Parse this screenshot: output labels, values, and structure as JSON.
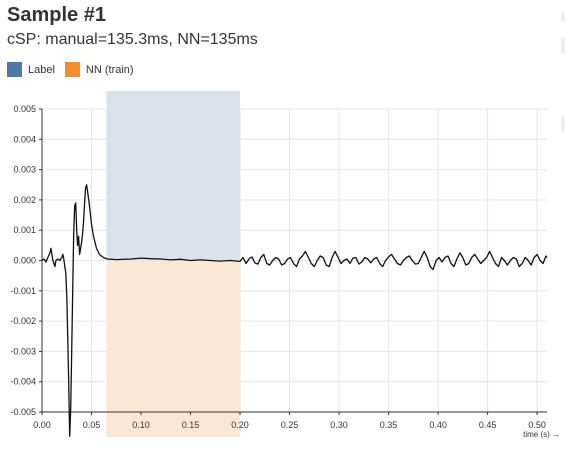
{
  "title": "Sample #1",
  "subtitle": "cSP: manual=135.3ms, NN=135ms",
  "colors": {
    "label": "#4e79a7",
    "nn": "#f28e2b",
    "label_shade": "#dae2ec",
    "nn_shade": "#fbe7d5",
    "trace": "#111111",
    "grid": "#e6e6e6"
  },
  "legend": [
    {
      "label": "Label",
      "color": "#4e79a7"
    },
    {
      "label": "NN (train)",
      "color": "#f28e2b"
    }
  ],
  "chart_data": {
    "type": "line",
    "title": "",
    "xlabel": "time (s) →",
    "ylabel": "",
    "xlim": [
      0.0,
      0.51
    ],
    "ylim": [
      -0.005,
      0.005
    ],
    "grid": true,
    "x_ticks": [
      "0.00",
      "0.05",
      "0.10",
      "0.15",
      "0.20",
      "0.25",
      "0.30",
      "0.35",
      "0.40",
      "0.45",
      "0.50"
    ],
    "y_ticks": [
      "0.005",
      "0.004",
      "0.003",
      "0.002",
      "0.001",
      "0.000",
      "-0.001",
      "-0.002",
      "-0.003",
      "-0.004",
      "-0.005"
    ],
    "regions": [
      {
        "series": "Label",
        "x_start": 0.065,
        "x_end": 0.2,
        "y_range": "positive"
      },
      {
        "series": "NN (train)",
        "x_start": 0.065,
        "x_end": 0.2,
        "y_range": "negative"
      }
    ],
    "series": [
      {
        "values": [
          [
            0.0,
            0.0
          ],
          [
            0.002,
            5e-05
          ],
          [
            0.004,
            -5e-05
          ],
          [
            0.006,
            0.0001
          ],
          [
            0.008,
            0.00025
          ],
          [
            0.009,
            0.0004
          ],
          [
            0.01,
            0.0002
          ],
          [
            0.011,
            0.0
          ],
          [
            0.012,
            -0.0001
          ],
          [
            0.013,
            -0.0002
          ],
          [
            0.014,
            0.0
          ],
          [
            0.016,
            5e-05
          ],
          [
            0.018,
            0.0
          ],
          [
            0.02,
            0.0001
          ],
          [
            0.021,
            0.0002
          ],
          [
            0.022,
            5e-05
          ],
          [
            0.023,
            -0.0002
          ],
          [
            0.024,
            -0.0004
          ],
          [
            0.025,
            -0.0012
          ],
          [
            0.026,
            -0.0025
          ],
          [
            0.027,
            -0.004
          ],
          [
            0.0275,
            -0.005
          ],
          [
            0.028,
            -0.0058
          ],
          [
            0.029,
            -0.0049
          ],
          [
            0.03,
            -0.003
          ],
          [
            0.031,
            -0.001
          ],
          [
            0.032,
            0.0009
          ],
          [
            0.033,
            0.0018
          ],
          [
            0.034,
            0.0019
          ],
          [
            0.035,
            0.001
          ],
          [
            0.036,
            0.0005
          ],
          [
            0.037,
            0.0008
          ],
          [
            0.038,
            0.0002
          ],
          [
            0.039,
            0.0004
          ],
          [
            0.04,
            0.0006
          ],
          [
            0.041,
            0.0009
          ],
          [
            0.042,
            0.0013
          ],
          [
            0.043,
            0.0019
          ],
          [
            0.044,
            0.0024
          ],
          [
            0.045,
            0.0025
          ],
          [
            0.046,
            0.0023
          ],
          [
            0.048,
            0.0018
          ],
          [
            0.05,
            0.0012
          ],
          [
            0.052,
            0.0008
          ],
          [
            0.055,
            0.0004
          ],
          [
            0.058,
            0.0002
          ],
          [
            0.062,
            0.0001
          ],
          [
            0.066,
            5e-05
          ],
          [
            0.075,
            3e-05
          ],
          [
            0.09,
            5e-05
          ],
          [
            0.1,
            8e-05
          ],
          [
            0.11,
            6e-05
          ],
          [
            0.12,
            5e-05
          ],
          [
            0.13,
            2e-05
          ],
          [
            0.14,
            4e-05
          ],
          [
            0.15,
            0.0
          ],
          [
            0.16,
            2e-05
          ],
          [
            0.17,
            0.0
          ],
          [
            0.18,
            -2e-05
          ],
          [
            0.19,
            0.0
          ],
          [
            0.2,
            -3e-05
          ],
          [
            0.203,
            0.0001
          ],
          [
            0.206,
            -0.0001
          ],
          [
            0.209,
            5e-05
          ],
          [
            0.212,
            0.00012
          ],
          [
            0.215,
            -8e-05
          ],
          [
            0.218,
            -0.00012
          ],
          [
            0.221,
            0.0001
          ],
          [
            0.224,
            0.0002
          ],
          [
            0.227,
            -0.0001
          ],
          [
            0.23,
            -0.00015
          ],
          [
            0.233,
            0.0
          ],
          [
            0.236,
            0.0001
          ],
          [
            0.239,
            5e-05
          ],
          [
            0.242,
            -0.00015
          ],
          [
            0.245,
            -0.0001
          ],
          [
            0.248,
            5e-05
          ],
          [
            0.251,
            0.0001
          ],
          [
            0.254,
            -0.0001
          ],
          [
            0.257,
            -0.0002
          ],
          [
            0.26,
            5e-05
          ],
          [
            0.263,
            0.00015
          ],
          [
            0.266,
            0.0003
          ],
          [
            0.269,
            0.0001
          ],
          [
            0.272,
            -0.0001
          ],
          [
            0.275,
            -0.0002
          ],
          [
            0.278,
            0.0
          ],
          [
            0.281,
            0.00015
          ],
          [
            0.284,
            0.0001
          ],
          [
            0.287,
            -0.00015
          ],
          [
            0.29,
            -0.0002
          ],
          [
            0.293,
            0.0001
          ],
          [
            0.296,
            0.0003
          ],
          [
            0.299,
            0.0001
          ],
          [
            0.302,
            -0.0001
          ],
          [
            0.305,
            0.0
          ],
          [
            0.308,
            5e-05
          ],
          [
            0.311,
            -0.0001
          ],
          [
            0.314,
            8e-05
          ],
          [
            0.317,
            0.0001
          ],
          [
            0.32,
            -0.00012
          ],
          [
            0.323,
            -5e-05
          ],
          [
            0.326,
            0.0001
          ],
          [
            0.329,
            5e-05
          ],
          [
            0.332,
            -8e-05
          ],
          [
            0.335,
            5e-05
          ],
          [
            0.338,
            0.0001
          ],
          [
            0.341,
            -0.0001
          ],
          [
            0.344,
            -0.0002
          ],
          [
            0.347,
            0.0
          ],
          [
            0.35,
            0.00012
          ],
          [
            0.353,
            0.0002
          ],
          [
            0.356,
            5e-05
          ],
          [
            0.359,
            -0.0001
          ],
          [
            0.362,
            -0.00015
          ],
          [
            0.365,
            0.0
          ],
          [
            0.368,
            0.0001
          ],
          [
            0.371,
            0.00015
          ],
          [
            0.374,
            0.0
          ],
          [
            0.377,
            -0.00012
          ],
          [
            0.38,
            -0.0001
          ],
          [
            0.383,
            0.0001
          ],
          [
            0.386,
            0.0003
          ],
          [
            0.389,
            0.0001
          ],
          [
            0.392,
            -0.0002
          ],
          [
            0.395,
            -0.0003
          ],
          [
            0.398,
            0.0
          ],
          [
            0.401,
            0.0001
          ],
          [
            0.404,
            -5e-05
          ],
          [
            0.407,
            0.0001
          ],
          [
            0.41,
            0.00015
          ],
          [
            0.413,
            -0.0001
          ],
          [
            0.416,
            -0.0002
          ],
          [
            0.419,
            5e-05
          ],
          [
            0.422,
            0.00025
          ],
          [
            0.425,
            0.0001
          ],
          [
            0.428,
            -0.00015
          ],
          [
            0.431,
            -0.0001
          ],
          [
            0.434,
            0.0001
          ],
          [
            0.437,
            0.0002
          ],
          [
            0.44,
            5e-05
          ],
          [
            0.443,
            -0.0001
          ],
          [
            0.446,
            0.0
          ],
          [
            0.449,
            0.0001
          ],
          [
            0.452,
            0.0003
          ],
          [
            0.455,
            0.0001
          ],
          [
            0.458,
            -0.0001
          ],
          [
            0.461,
            -0.0002
          ],
          [
            0.464,
            0.0001
          ],
          [
            0.467,
            0.0
          ],
          [
            0.47,
            -0.00015
          ],
          [
            0.473,
            0.0
          ],
          [
            0.476,
            0.0001
          ],
          [
            0.479,
            5e-05
          ],
          [
            0.482,
            -0.0002
          ],
          [
            0.485,
            -0.0001
          ],
          [
            0.488,
            0.0001
          ],
          [
            0.491,
            0.0
          ],
          [
            0.494,
            -0.00015
          ],
          [
            0.497,
            0.0001
          ],
          [
            0.5,
            0.0002
          ],
          [
            0.503,
            0.0
          ],
          [
            0.506,
            -0.0001
          ],
          [
            0.509,
            0.00015
          ],
          [
            0.51,
            0.0001
          ]
        ]
      }
    ]
  }
}
